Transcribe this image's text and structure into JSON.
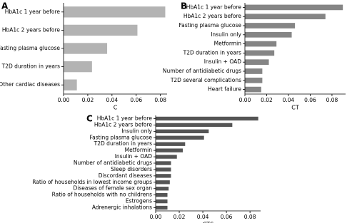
{
  "chart_data": [
    {
      "type": "barh",
      "label": "A",
      "xlabel": "C",
      "color": "#b3b3b3",
      "categories": [
        "HbA1c 1 year before",
        "HbA1c 2 years before",
        "Fasting plasma glucose",
        "T2D duration in years",
        "Other cardiac diseases"
      ],
      "values": [
        0.084,
        0.061,
        0.036,
        0.0235,
        0.011
      ],
      "xlim": [
        0,
        0.0855
      ],
      "xticks": [
        {
          "value": 0,
          "label": "0.00"
        },
        {
          "value": 0.02,
          "label": "0.02"
        },
        {
          "value": 0.04,
          "label": "0.04"
        },
        {
          "value": 0.06,
          "label": "0.06"
        },
        {
          "value": 0.08,
          "label": "0.08"
        }
      ]
    },
    {
      "type": "barh",
      "label": "B",
      "xlabel": "CT",
      "color": "#858585",
      "categories": [
        "HbA1c 1 year before",
        "HbA1c 2 years before",
        "Fasting plasma glucose",
        "Insulin only",
        "Metformin",
        "T2D duration in years",
        "Insulin + OAD",
        "Number of antidiabetic drugs",
        "T2D several complications",
        "Heart failure"
      ],
      "values": [
        0.09,
        0.074,
        0.046,
        0.043,
        0.029,
        0.027,
        0.022,
        0.016,
        0.016,
        0.015
      ],
      "xlim": [
        0,
        0.0925
      ],
      "xticks": [
        {
          "value": 0,
          "label": "0.00"
        },
        {
          "value": 0.02,
          "label": "0.02"
        },
        {
          "value": 0.04,
          "label": "0.04"
        },
        {
          "value": 0.06,
          "label": "0.06"
        },
        {
          "value": 0.08,
          "label": "0.08"
        }
      ]
    },
    {
      "type": "barh",
      "label": "C",
      "xlabel": "CTS",
      "color": "#555555",
      "categories": [
        "HbA1c 1 year before",
        "HbA1c 2 years before",
        "Insulin only",
        "Fasting plasma glucose",
        "T2D duration in years",
        "Metformin",
        "Insulin + OAD",
        "Number of antidiabetic drugs",
        "Sleep disorders",
        "Discordant diseases",
        "Ratio of households in lowest income groups",
        "Diseases of female sex organ",
        "Ratio of households with no childrens",
        "Estrogens",
        "Adrenergic inhalations"
      ],
      "values": [
        0.087,
        0.065,
        0.045,
        0.041,
        0.025,
        0.023,
        0.018,
        0.013,
        0.013,
        0.013,
        0.012,
        0.011,
        0.01,
        0.01,
        0.01
      ],
      "xlim": [
        0,
        0.089
      ],
      "xticks": [
        {
          "value": 0,
          "label": "0.00"
        },
        {
          "value": 0.02,
          "label": "0.02"
        },
        {
          "value": 0.04,
          "label": "0.04"
        },
        {
          "value": 0.06,
          "label": "0.06"
        },
        {
          "value": 0.08,
          "label": "0.08"
        }
      ]
    }
  ]
}
